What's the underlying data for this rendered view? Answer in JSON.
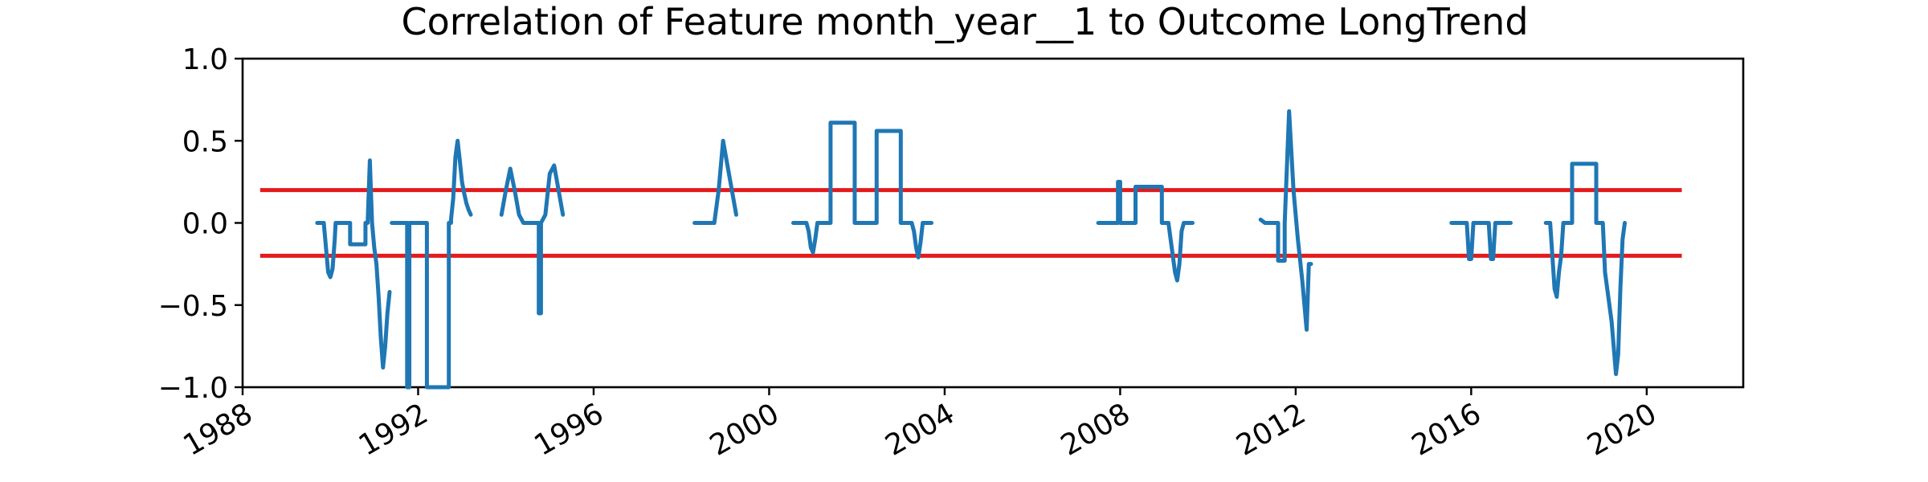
{
  "chart_data": {
    "type": "line",
    "title": "Correlation of Feature month_year__1 to Outcome LongTrend",
    "xlabel": "",
    "ylabel": "",
    "xlim": [
      1988.0,
      2022.2
    ],
    "ylim": [
      -1.0,
      1.0
    ],
    "x_ticks": [
      1988,
      1992,
      1996,
      2000,
      2004,
      2008,
      2012,
      2016,
      2020
    ],
    "x_tick_labels": [
      "1988",
      "1992",
      "1996",
      "2000",
      "2004",
      "2008",
      "2012",
      "2016",
      "2020"
    ],
    "y_ticks": [
      -1.0,
      -0.5,
      0.0,
      0.5,
      1.0
    ],
    "y_tick_labels": [
      "−1.0",
      "−0.5",
      "0.0",
      "0.5",
      "1.0"
    ],
    "grid": false,
    "colors": {
      "series": "#1f77b4",
      "thresholds": "#e41a1c",
      "axes": "#000000"
    },
    "thresholds": [
      {
        "y": 0.2,
        "x": [
          1988.4,
          2020.8
        ]
      },
      {
        "y": -0.2,
        "x": [
          1988.4,
          2020.8
        ]
      }
    ],
    "segments": [
      {
        "x": [
          1989.7,
          1989.85,
          1989.9,
          1989.95,
          1990.0,
          1990.05,
          1990.1,
          1990.12,
          1990.15,
          1990.45,
          1990.45,
          1990.5,
          1990.5,
          1990.55,
          1990.8,
          1990.8,
          1990.85,
          1990.9,
          1990.95,
          1991.0,
          1991.05,
          1991.1,
          1991.15,
          1991.2,
          1991.25,
          1991.3,
          1991.35
        ],
        "y": [
          0.0,
          0.0,
          -0.15,
          -0.3,
          -0.33,
          -0.28,
          -0.1,
          0.0,
          0.0,
          0.0,
          -0.13,
          -0.13,
          -0.13,
          -0.13,
          -0.13,
          0.0,
          0.0,
          0.38,
          0.0,
          -0.15,
          -0.25,
          -0.45,
          -0.7,
          -0.88,
          -0.75,
          -0.55,
          -0.42
        ]
      },
      {
        "x": [
          1991.4,
          1991.75,
          1991.75,
          1991.8,
          1991.8,
          1991.85,
          1991.85,
          1992.2,
          1992.2,
          1992.7,
          1992.7,
          1992.75,
          1992.75,
          1992.8,
          1992.85,
          1992.9,
          1992.95,
          1993.0,
          1993.05,
          1993.1,
          1993.15,
          1993.2
        ],
        "y": [
          0.0,
          0.0,
          -1.0,
          -1.0,
          0.0,
          0.0,
          0.0,
          0.0,
          -1.0,
          -1.0,
          0.0,
          0.0,
          0.02,
          0.15,
          0.4,
          0.5,
          0.38,
          0.25,
          0.18,
          0.12,
          0.08,
          0.05
        ]
      },
      {
        "x": [
          1993.9,
          1994.0,
          1994.1,
          1994.2,
          1994.3,
          1994.4,
          1994.4,
          1994.75,
          1994.75,
          1994.8,
          1994.8,
          1994.9,
          1995.0,
          1995.1,
          1995.2,
          1995.3
        ],
        "y": [
          0.05,
          0.2,
          0.33,
          0.2,
          0.05,
          0.0,
          0.0,
          0.0,
          -0.55,
          -0.55,
          0.0,
          0.05,
          0.3,
          0.35,
          0.2,
          0.05
        ]
      },
      {
        "x": [
          1998.3,
          1998.75,
          1998.85,
          1998.95,
          1999.05,
          1999.15,
          1999.25
        ],
        "y": [
          0.0,
          0.0,
          0.2,
          0.5,
          0.35,
          0.2,
          0.05
        ]
      },
      {
        "x": [
          2000.55,
          2000.85,
          2000.9,
          2000.95,
          2001.0,
          2001.05,
          2001.1,
          2001.15,
          2001.2,
          2001.25,
          2001.3,
          2001.4,
          2001.4,
          2001.95,
          2001.95,
          2002.45,
          2002.45,
          2003.0,
          2003.0,
          2003.25,
          2003.3,
          2003.35,
          2003.4,
          2003.45,
          2003.5,
          2003.55,
          2003.7
        ],
        "y": [
          0.0,
          0.0,
          -0.05,
          -0.15,
          -0.18,
          -0.1,
          0.0,
          0.0,
          0.0,
          0.0,
          0.0,
          0.0,
          0.61,
          0.61,
          0.0,
          0.0,
          0.56,
          0.56,
          0.0,
          0.0,
          -0.05,
          -0.15,
          -0.21,
          -0.12,
          0.0,
          0.0,
          0.0
        ]
      },
      {
        "x": [
          2007.5,
          2007.95,
          2007.95,
          2008.0,
          2008.0,
          2008.15,
          2008.15,
          2008.35,
          2008.35,
          2008.95,
          2008.95,
          2009.1,
          2009.2,
          2009.25,
          2009.3,
          2009.35,
          2009.4,
          2009.45,
          2009.65
        ],
        "y": [
          0.0,
          0.0,
          0.25,
          0.25,
          0.0,
          0.0,
          0.0,
          0.0,
          0.22,
          0.22,
          0.0,
          0.0,
          -0.2,
          -0.3,
          -0.35,
          -0.25,
          -0.05,
          0.0,
          0.0
        ]
      },
      {
        "x": [
          2011.2,
          2011.3,
          2011.5,
          2011.55,
          2011.6,
          2011.6,
          2011.75,
          2011.75,
          2011.85,
          2011.95,
          2012.05,
          2012.15,
          2012.25,
          2012.3,
          2012.3,
          2012.35
        ],
        "y": [
          0.02,
          0.0,
          0.0,
          0.0,
          0.0,
          -0.23,
          -0.23,
          0.0,
          0.68,
          0.2,
          -0.1,
          -0.35,
          -0.65,
          -0.25,
          -0.25,
          -0.25
        ]
      },
      {
        "x": [
          2015.55,
          2015.9,
          2015.95,
          2016.0,
          2016.05,
          2016.4,
          2016.45,
          2016.5,
          2016.55,
          2016.9
        ],
        "y": [
          0.0,
          0.0,
          -0.22,
          -0.22,
          0.0,
          0.0,
          -0.22,
          -0.22,
          0.0,
          0.0
        ]
      },
      {
        "x": [
          2017.7,
          2017.8,
          2017.9,
          2017.95,
          2018.0,
          2018.05,
          2018.1,
          2018.15,
          2018.2,
          2018.25,
          2018.3,
          2018.3,
          2018.85,
          2018.85,
          2019.0,
          2019.05,
          2019.1,
          2019.2,
          2019.3,
          2019.35,
          2019.4,
          2019.45,
          2019.5
        ],
        "y": [
          0.0,
          0.0,
          -0.4,
          -0.45,
          -0.3,
          -0.2,
          0.0,
          0.0,
          0.0,
          0.0,
          0.0,
          0.36,
          0.36,
          0.0,
          0.0,
          -0.3,
          -0.4,
          -0.6,
          -0.92,
          -0.8,
          -0.4,
          -0.1,
          0.0
        ]
      }
    ]
  }
}
